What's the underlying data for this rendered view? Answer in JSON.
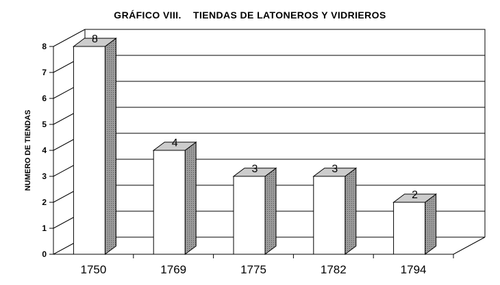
{
  "chart_data": {
    "type": "bar",
    "title": "GRÁFICO VIII.    TIENDAS DE LATONEROS Y VIDRIEROS",
    "xlabel": "",
    "ylabel": "NUMERO DE TIENDAS",
    "categories": [
      "1750",
      "1769",
      "1775",
      "1782",
      "1794"
    ],
    "values": [
      8,
      4,
      3,
      3,
      2
    ],
    "data_labels": [
      "8",
      "4",
      "3",
      "3",
      "2"
    ],
    "y_ticks": [
      "0",
      "1",
      "2",
      "3",
      "4",
      "5",
      "6",
      "7",
      "8"
    ],
    "ylim": [
      0,
      8
    ],
    "grid": true,
    "style": "3d-column",
    "colors": {
      "bar_front": "#ffffff",
      "bar_top": "#c8c8c8",
      "bar_side": "#8a8a8a",
      "grid": "#000000"
    }
  }
}
